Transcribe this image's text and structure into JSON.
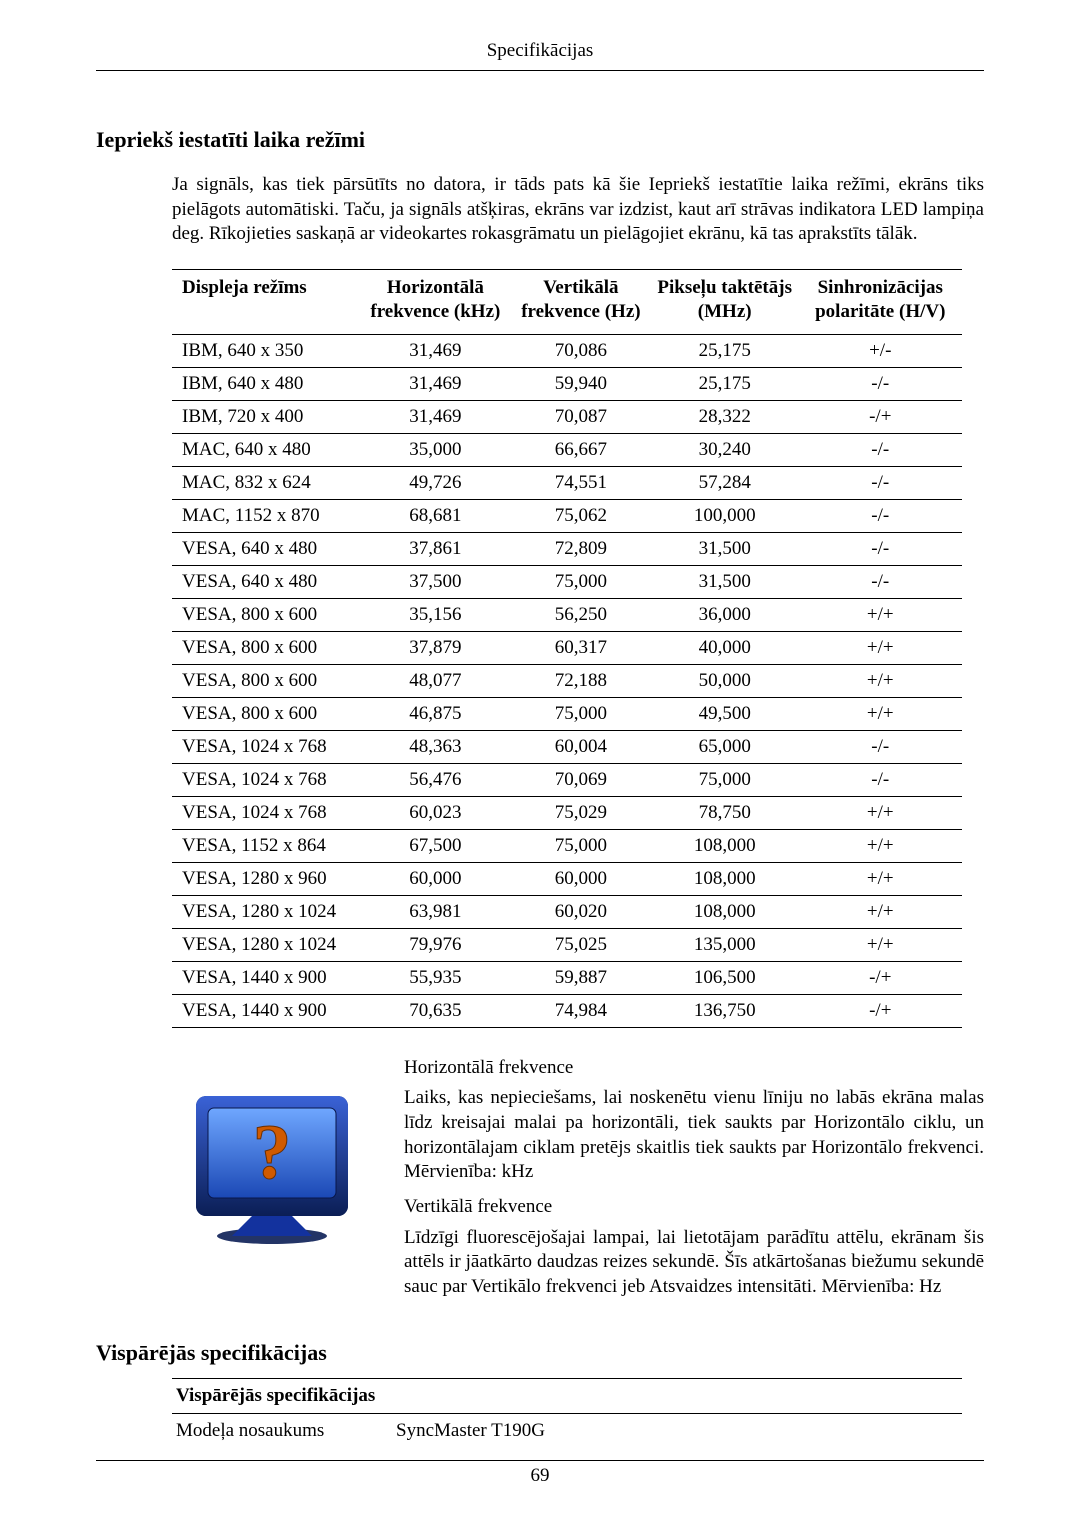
{
  "header": {
    "title": "Specifikācijas"
  },
  "section1": {
    "heading": "Iepriekš iestatīti laika režīmi",
    "para": "Ja signāls, kas tiek pārsūtīts no datora, ir tāds pats kā šie Iepriekš iestatītie laika režīmi, ekrāns tiks pielāgots automātiski. Taču, ja signāls atšķiras, ekrāns var izdzist, kaut arī strāvas indikatora LED lampiņa deg. Rīkojieties saskaņā ar videokartes rokasgrāmatu un pielāgojiet ekrānu, kā tas aprakstīts tālāk."
  },
  "timing_table": {
    "columns": [
      "Displeja režīms",
      "Horizontālā frekvence (kHz)",
      "Vertikālā frekvence (Hz)",
      "Pikseļu taktētājs (MHz)",
      "Sinhronizācijas polaritāte (H/V)"
    ],
    "rows": [
      [
        "IBM, 640 x 350",
        "31,469",
        "70,086",
        "25,175",
        "+/-"
      ],
      [
        "IBM, 640 x 480",
        "31,469",
        "59,940",
        "25,175",
        "-/-"
      ],
      [
        "IBM, 720 x 400",
        "31,469",
        "70,087",
        "28,322",
        "-/+"
      ],
      [
        "MAC, 640 x 480",
        "35,000",
        "66,667",
        "30,240",
        "-/-"
      ],
      [
        "MAC, 832 x 624",
        "49,726",
        "74,551",
        "57,284",
        "-/-"
      ],
      [
        "MAC, 1152 x 870",
        "68,681",
        "75,062",
        "100,000",
        "-/-"
      ],
      [
        "VESA, 640 x 480",
        "37,861",
        "72,809",
        "31,500",
        "-/-"
      ],
      [
        "VESA, 640 x 480",
        "37,500",
        "75,000",
        "31,500",
        "-/-"
      ],
      [
        "VESA, 800 x 600",
        "35,156",
        "56,250",
        "36,000",
        "+/+"
      ],
      [
        "VESA, 800 x 600",
        "37,879",
        "60,317",
        "40,000",
        "+/+"
      ],
      [
        "VESA, 800 x 600",
        "48,077",
        "72,188",
        "50,000",
        "+/+"
      ],
      [
        "VESA, 800 x 600",
        "46,875",
        "75,000",
        "49,500",
        "+/+"
      ],
      [
        "VESA, 1024 x 768",
        "48,363",
        "60,004",
        "65,000",
        "-/-"
      ],
      [
        "VESA, 1024 x 768",
        "56,476",
        "70,069",
        "75,000",
        "-/-"
      ],
      [
        "VESA, 1024 x 768",
        "60,023",
        "75,029",
        "78,750",
        "+/+"
      ],
      [
        "VESA, 1152 x 864",
        "67,500",
        "75,000",
        "108,000",
        "+/+"
      ],
      [
        "VESA, 1280 x 960",
        "60,000",
        "60,000",
        "108,000",
        "+/+"
      ],
      [
        "VESA, 1280 x 1024",
        "63,981",
        "60,020",
        "108,000",
        "+/+"
      ],
      [
        "VESA, 1280 x 1024",
        "79,976",
        "75,025",
        "135,000",
        "+/+"
      ],
      [
        "VESA, 1440 x 900",
        "55,935",
        "59,887",
        "106,500",
        "-/+"
      ],
      [
        "VESA, 1440 x 900",
        "70,635",
        "74,984",
        "136,750",
        "-/+"
      ]
    ]
  },
  "freq": {
    "h_title": "Horizontālā frekvence",
    "h_body": "Laiks, kas nepieciešams, lai noskenētu vienu līniju no labās ekrāna malas līdz kreisajai malai pa horizontāli, tiek saukts par Horizontālo ciklu, un horizontālajam ciklam pretējs skaitlis tiek saukts par Horizontālo frekvenci. Mērvienība: kHz",
    "v_title": "Vertikālā frekvence",
    "v_body": "Līdzīgi fluorescējošajai lampai, lai lietotājam parādītu attēlu, ekrānam šis attēls ir jāatkārto daudzas reizes sekundē. Šīs atkārtošanas biežumu sekundē sauc par Vertikālo frekvenci jeb Atsvaidzes intensitāti. Mērvienība: Hz"
  },
  "section2": {
    "heading": "Vispārējās specifikācijas",
    "subhead": "Vispārējās specifikācijas",
    "row1_label": "Modeļa nosaukums",
    "row1_value": "SyncMaster T190G"
  },
  "footer": {
    "page": "69"
  }
}
